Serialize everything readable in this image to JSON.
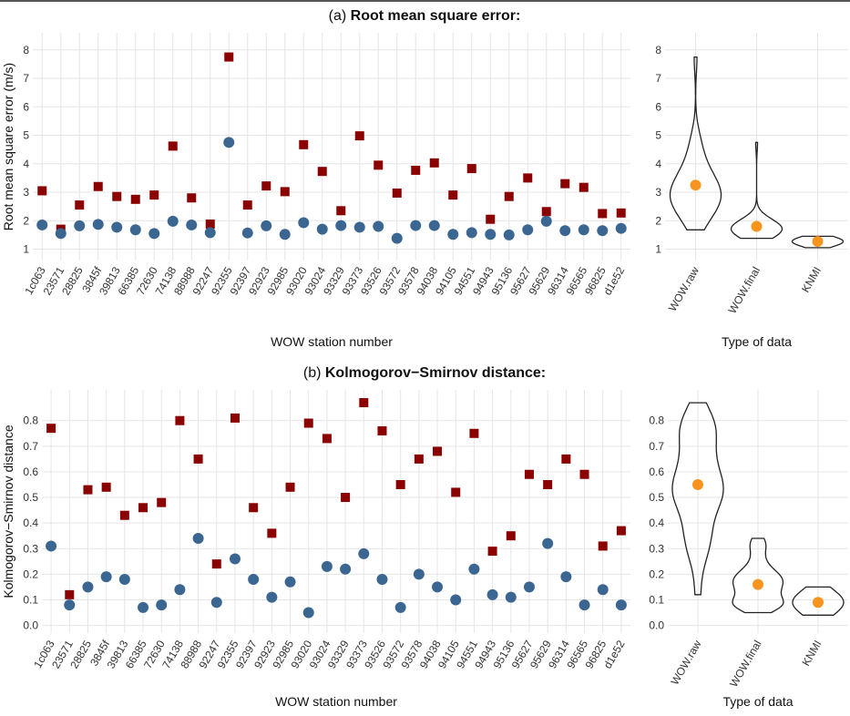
{
  "colors": {
    "raw": "#8b0000",
    "final": "#3a6691",
    "median": "#f7941d",
    "violin": "#222222",
    "grid": "#e6e6e6"
  },
  "chart_data": [
    {
      "id": "a",
      "title_prefix": "(a) ",
      "title": "Root mean square error:",
      "ylabel": "Root mean square error (m/s)",
      "ylim": [
        0.6,
        8.6
      ],
      "yticks": [
        1,
        2,
        3,
        4,
        5,
        6,
        7,
        8
      ],
      "scatter": {
        "type": "scatter",
        "xlabel": "WOW station number",
        "categories": [
          "1c063",
          "23571",
          "28825",
          "3845f",
          "39813",
          "66385",
          "72630",
          "74138",
          "88988",
          "92247",
          "92355",
          "92397",
          "92923",
          "92985",
          "93020",
          "93024",
          "93329",
          "93373",
          "93526",
          "93572",
          "93578",
          "94038",
          "94105",
          "94551",
          "94943",
          "95136",
          "95627",
          "95629",
          "96314",
          "96565",
          "96825",
          "d1e52"
        ],
        "series": [
          {
            "key": "raw",
            "marker": "square",
            "values": [
              3.05,
              1.7,
              2.55,
              3.2,
              2.85,
              2.75,
              2.9,
              4.62,
              2.8,
              1.88,
              7.75,
              2.55,
              3.22,
              3.02,
              4.67,
              3.73,
              2.35,
              4.98,
              3.95,
              2.97,
              3.77,
              4.03,
              2.9,
              3.83,
              2.05,
              2.85,
              3.5,
              2.32,
              3.3,
              3.17,
              2.25,
              2.27
            ]
          },
          {
            "key": "final",
            "marker": "circle",
            "values": [
              1.85,
              1.55,
              1.82,
              1.87,
              1.77,
              1.68,
              1.55,
              1.98,
              1.85,
              1.58,
              4.75,
              1.57,
              1.82,
              1.52,
              1.93,
              1.7,
              1.83,
              1.77,
              1.8,
              1.38,
              1.83,
              1.83,
              1.52,
              1.58,
              1.52,
              1.5,
              1.68,
              1.98,
              1.65,
              1.68,
              1.65,
              1.73
            ]
          }
        ]
      },
      "violin": {
        "type": "violin",
        "xlabel": "Type of data",
        "categories": [
          "WOW.raw",
          "WOW.final",
          "KNMI"
        ],
        "medians": [
          3.25,
          1.8,
          1.27
        ],
        "ranges": [
          [
            1.68,
            7.75
          ],
          [
            1.38,
            4.75
          ],
          [
            1.05,
            1.45
          ]
        ]
      }
    },
    {
      "id": "b",
      "title_prefix": "(b) ",
      "title": "Kolmogorov−Smirnov distance:",
      "ylabel": "Kolmogorov−Smirnov distance",
      "ylim": [
        -0.03,
        0.92
      ],
      "yticks": [
        0.0,
        0.1,
        0.2,
        0.3,
        0.4,
        0.5,
        0.6,
        0.7,
        0.8
      ],
      "ytick_labels": [
        "0.0",
        "0.1",
        "0.2",
        "0.3",
        "0.4",
        "0.5",
        "0.6",
        "0.7",
        "0.8"
      ],
      "scatter": {
        "type": "scatter",
        "xlabel": "WOW station number",
        "categories": [
          "1c063",
          "23571",
          "28825",
          "3845f",
          "39813",
          "66385",
          "72630",
          "74138",
          "88988",
          "92247",
          "92355",
          "92397",
          "92923",
          "92985",
          "93020",
          "93024",
          "93329",
          "93373",
          "93526",
          "93572",
          "93578",
          "94038",
          "94105",
          "94551",
          "94943",
          "95136",
          "95627",
          "95629",
          "96314",
          "96565",
          "96825",
          "d1e52"
        ],
        "series": [
          {
            "key": "raw",
            "marker": "square",
            "values": [
              0.77,
              0.12,
              0.53,
              0.54,
              0.43,
              0.46,
              0.48,
              0.8,
              0.65,
              0.24,
              0.81,
              0.46,
              0.36,
              0.54,
              0.79,
              0.73,
              0.5,
              0.87,
              0.76,
              0.55,
              0.65,
              0.68,
              0.52,
              0.75,
              0.29,
              0.35,
              0.59,
              0.55,
              0.65,
              0.59,
              0.31,
              0.37
            ]
          },
          {
            "key": "final",
            "marker": "circle",
            "values": [
              0.31,
              0.08,
              0.15,
              0.19,
              0.18,
              0.07,
              0.08,
              0.14,
              0.34,
              0.09,
              0.26,
              0.18,
              0.11,
              0.17,
              0.05,
              0.23,
              0.22,
              0.28,
              0.18,
              0.07,
              0.2,
              0.15,
              0.1,
              0.22,
              0.12,
              0.11,
              0.15,
              0.32,
              0.19,
              0.08,
              0.14,
              0.08
            ]
          }
        ]
      },
      "violin": {
        "type": "violin",
        "xlabel": "Type of data",
        "categories": [
          "WOW.raw",
          "WOW.final",
          "KNMI"
        ],
        "medians": [
          0.55,
          0.16,
          0.09
        ],
        "ranges": [
          [
            0.12,
            0.87
          ],
          [
            0.05,
            0.34
          ],
          [
            0.04,
            0.15
          ]
        ]
      }
    }
  ]
}
